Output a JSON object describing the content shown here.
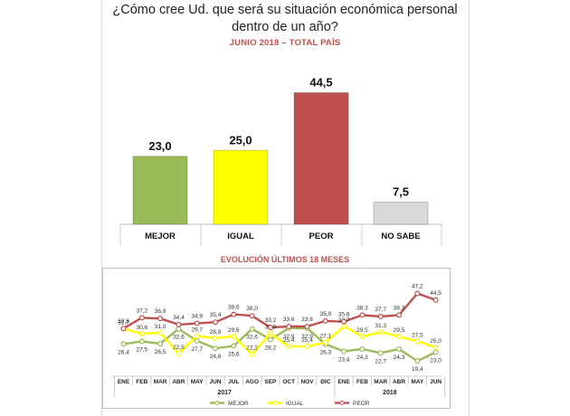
{
  "title": "¿Cómo cree Ud. que será su situación económica personal dentro de un año?",
  "chart_data": [
    {
      "type": "bar",
      "title": "¿Cómo cree Ud. que será su situación económica personal dentro de un año?",
      "subtitle": "JUNIO 2018 – TOTAL PAÍS",
      "categories": [
        "MEJOR",
        "IGUAL",
        "PEOR",
        "NO SABE"
      ],
      "values": [
        23.0,
        25.0,
        44.5,
        7.5
      ],
      "value_labels": [
        "23,0",
        "25,0",
        "44,5",
        "7,5"
      ],
      "colors": [
        "#9bbb59",
        "#ffff00",
        "#c0504d",
        "#d9d9d9"
      ],
      "ylim": [
        0,
        50
      ]
    },
    {
      "type": "line",
      "title": "EVOLUCIÓN ÚLTIMOS 18 MESES",
      "months": [
        "ENE",
        "FEB",
        "MAR",
        "ABR",
        "MAY",
        "JUN",
        "JUL",
        "AGO",
        "SEP",
        "OCT",
        "NOV",
        "DIC",
        "ENE",
        "FEB",
        "MAR",
        "ABR",
        "MAY",
        "JUN"
      ],
      "years": [
        {
          "label": "2017",
          "from": 0,
          "to": 11
        },
        {
          "label": "2018",
          "from": 12,
          "to": 17
        }
      ],
      "ylim": [
        15,
        50
      ],
      "series": [
        {
          "name": "MEJOR",
          "color": "#9bbb59",
          "values": [
            26.4,
            27.5,
            26.5,
            32.6,
            27.7,
            24.6,
            25.6,
            32.6,
            28.2,
            32.9,
            32.9,
            26.3,
            23.4,
            24.3,
            22.7,
            24.3,
            19.4,
            23.0
          ],
          "labels": [
            "26,4",
            "27,5",
            "26,5",
            "32,6",
            "27,7",
            "24,6",
            "25,6",
            "32,6",
            "28,2",
            "32,9",
            "32,9",
            "26,3",
            "23,4",
            "24,3",
            "22,7",
            "24,3",
            "19,4",
            "23,0"
          ]
        },
        {
          "name": "IGUAL",
          "color": "#ffff00",
          "values": [
            32.7,
            30.6,
            31.0,
            22.5,
            29.7,
            28.8,
            29.6,
            22.2,
            30.8,
            25.4,
            25.4,
            27.1,
            33.7,
            29.5,
            31.3,
            29.5,
            27.5,
            25.0
          ],
          "labels": [
            "32,7",
            "30,6",
            "31,0",
            "22,5",
            "29,7",
            "28,8",
            "29,6",
            "22,2",
            "30,8",
            "25,4",
            "25,4",
            "27,1",
            "33,7",
            "29,5",
            "31,3",
            "29,5",
            "27,5",
            "25,0"
          ]
        },
        {
          "name": "PEOR",
          "color": "#c0504d",
          "values": [
            32.8,
            37.2,
            36.9,
            34.4,
            34.9,
            35.4,
            38.6,
            38.0,
            33.2,
            33.6,
            33.6,
            35.9,
            35.6,
            38.3,
            37.7,
            38.3,
            47.2,
            44.5
          ],
          "labels": [
            "32,8",
            "37,2",
            "36,9",
            "34,4",
            "34,9",
            "35,4",
            "38,6",
            "38,0",
            "33,2",
            "33,6",
            "33,6",
            "35,9",
            "35,6",
            "38,3",
            "37,7",
            "38,3",
            "47,2",
            "44,5"
          ]
        }
      ]
    }
  ]
}
